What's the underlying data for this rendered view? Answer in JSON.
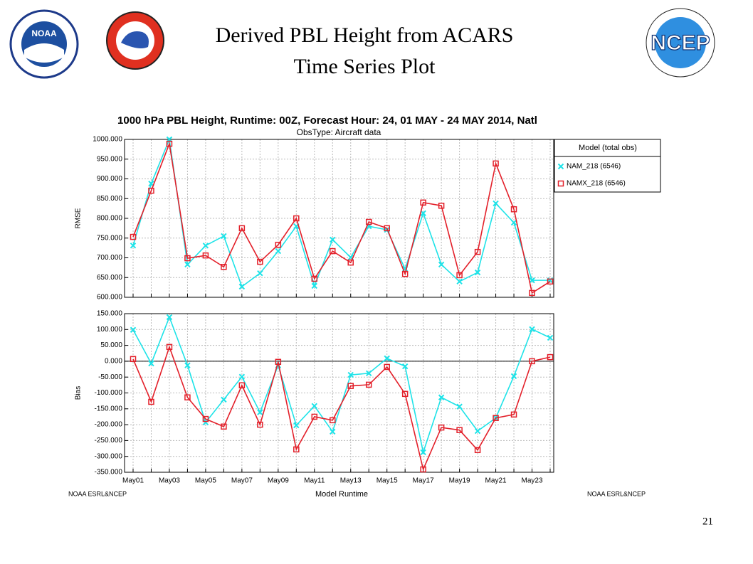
{
  "slide": {
    "title_line1": "Derived PBL Height from ACARS",
    "title_line2": "Time Series Plot",
    "footer_left": "NOAA ESRL&NCEP",
    "footer_right": "NOAA ESRL&NCEP",
    "page_number": "21",
    "logo_noaa": "NOAA",
    "logo_ncep": "NCEP"
  },
  "chart_data": [
    {
      "type": "line",
      "title": "1000 hPa PBL Height, Runtime: 00Z, Forecast Hour: 24, 01 MAY - 24 MAY 2014, Natl",
      "subtitle": "ObsType: Aircraft data",
      "ylabel": "RMSE",
      "legend_title": "Model  (total obs)",
      "legend": "right",
      "grid": true,
      "ylim": [
        600,
        1000
      ],
      "yticks": [
        {
          "value": 600,
          "label": "600.000"
        },
        {
          "value": 650,
          "label": "650.000"
        },
        {
          "value": 700,
          "label": "700.000"
        },
        {
          "value": 750,
          "label": "750.000"
        },
        {
          "value": 800,
          "label": "800.000"
        },
        {
          "value": 850,
          "label": "850.000"
        },
        {
          "value": 900,
          "label": "900.000"
        },
        {
          "value": 950,
          "label": "950.000"
        },
        {
          "value": 1000,
          "label": "1000.000"
        }
      ],
      "series": [
        {
          "name": "NAM_218 (6546)",
          "color": "#1ee3e8",
          "marker": "x",
          "values": [
            731,
            888,
            1000,
            683,
            731,
            755,
            627,
            661,
            717,
            780,
            629,
            746,
            701,
            780,
            771,
            672,
            813,
            683,
            640,
            663,
            838,
            789,
            643,
            643
          ]
        },
        {
          "name": "NAMX_218 (6546)",
          "color": "#e3202a",
          "marker": "square",
          "values": [
            753,
            870,
            989,
            699,
            706,
            677,
            775,
            690,
            733,
            800,
            647,
            717,
            688,
            791,
            775,
            659,
            840,
            832,
            656,
            715,
            939,
            823,
            611,
            640
          ]
        }
      ]
    },
    {
      "type": "line",
      "ylabel": "Bias",
      "xlabel": "Model Runtime",
      "grid": true,
      "categories": [
        "May01",
        null,
        "May03",
        null,
        "May05",
        null,
        "May07",
        null,
        "May09",
        null,
        "May11",
        null,
        "May13",
        null,
        "May15",
        null,
        "May17",
        null,
        "May19",
        null,
        "May21",
        null,
        "May23",
        null
      ],
      "ylim": [
        -350,
        150
      ],
      "yticks": [
        {
          "value": -350,
          "label": "-350.000"
        },
        {
          "value": -300,
          "label": "-300.000"
        },
        {
          "value": -250,
          "label": "-250.000"
        },
        {
          "value": -200,
          "label": "-200.000"
        },
        {
          "value": -150,
          "label": "-150.000"
        },
        {
          "value": -100,
          "label": "-100.000"
        },
        {
          "value": -50,
          "label": "-50.000"
        },
        {
          "value": 0,
          "label": "0.000"
        },
        {
          "value": 50,
          "label": "50.000"
        },
        {
          "value": 100,
          "label": "100.000"
        },
        {
          "value": 150,
          "label": "150.000"
        }
      ],
      "series": [
        {
          "name": "NAM_218 (6546)",
          "color": "#1ee3e8",
          "marker": "x",
          "values": [
            99,
            -7,
            139,
            -13,
            -193,
            -121,
            -49,
            -161,
            -13,
            -202,
            -141,
            -222,
            -43,
            -38,
            9,
            -16,
            -287,
            -114,
            -143,
            -220,
            -179,
            -47,
            101,
            74
          ]
        },
        {
          "name": "NAMX_218 (6546)",
          "color": "#e3202a",
          "marker": "square",
          "values": [
            7,
            -128,
            45,
            -114,
            -182,
            -206,
            -76,
            -200,
            -2,
            -278,
            -175,
            -186,
            -78,
            -74,
            -18,
            -103,
            -341,
            -209,
            -217,
            -280,
            -179,
            -168,
            0,
            13
          ]
        }
      ]
    }
  ]
}
